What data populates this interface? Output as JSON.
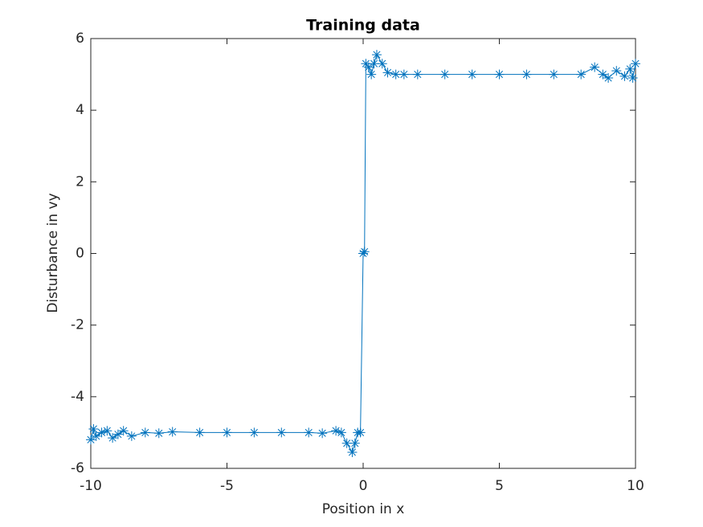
{
  "chart_data": {
    "type": "line",
    "title": "Training data",
    "x_label": "Position in x",
    "y_label": "Disturbance in vy",
    "x": [
      -10,
      -9.9,
      -9.8,
      -9.6,
      -9.4,
      -9.2,
      -9,
      -8.8,
      -8.5,
      -8,
      -7.5,
      -7,
      -6,
      -5,
      -4,
      -3,
      -2,
      -1.5,
      -1,
      -0.8,
      -0.6,
      -0.4,
      -0.3,
      -0.2,
      -0.1,
      0,
      0.05,
      0.1,
      0.2,
      0.3,
      0.4,
      0.5,
      0.7,
      0.9,
      1.2,
      1.5,
      2,
      3,
      4,
      5,
      6,
      7,
      8,
      8.5,
      8.8,
      9,
      9.3,
      9.6,
      9.8,
      9.9,
      10
    ],
    "series": [
      {
        "color": "#0072bd",
        "marker": "asterisk",
        "values": [
          -5.2,
          -4.9,
          -5.1,
          -5.0,
          -4.95,
          -5.15,
          -5.05,
          -4.95,
          -5.1,
          -5.0,
          -5.02,
          -4.98,
          -5.0,
          -5.0,
          -5.0,
          -5.0,
          -5.0,
          -5.02,
          -4.95,
          -5.0,
          -5.3,
          -5.55,
          -5.3,
          -5.0,
          -5.0,
          0,
          0.05,
          5.3,
          5.2,
          5.0,
          5.3,
          5.55,
          5.3,
          5.05,
          5.0,
          5.0,
          5.0,
          5.0,
          5.0,
          5.0,
          5.0,
          5.0,
          5.0,
          5.2,
          5.0,
          4.9,
          5.1,
          4.95,
          5.15,
          4.9,
          5.3
        ]
      }
    ],
    "xlim": [
      -10,
      10
    ],
    "xticks": [
      -10,
      -5,
      0,
      5,
      10
    ],
    "ylim": [
      -6,
      6
    ],
    "yticks": [
      -6,
      -4,
      -2,
      0,
      2,
      4,
      6
    ],
    "grid": false
  }
}
